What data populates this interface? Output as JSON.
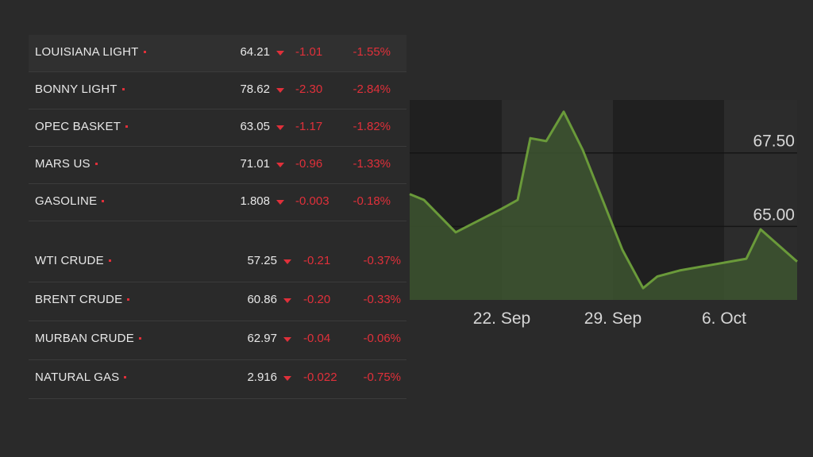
{
  "table": {
    "group1": [
      {
        "name": "LOUISIANA LIGHT",
        "price": "64.21",
        "change": "-1.01",
        "pct": "-1.55%"
      },
      {
        "name": "BONNY LIGHT",
        "price": "78.62",
        "change": "-2.30",
        "pct": "-2.84%"
      },
      {
        "name": "OPEC BASKET",
        "price": "63.05",
        "change": "-1.17",
        "pct": "-1.82%"
      },
      {
        "name": "MARS US",
        "price": "71.01",
        "change": "-0.96",
        "pct": "-1.33%"
      },
      {
        "name": "GASOLINE",
        "price": "1.808",
        "change": "-0.003",
        "pct": "-0.18%"
      }
    ],
    "group2": [
      {
        "name": "WTI CRUDE",
        "price": "57.25",
        "change": "-0.21",
        "pct": "-0.37%"
      },
      {
        "name": "BRENT CRUDE",
        "price": "60.86",
        "change": "-0.20",
        "pct": "-0.33%"
      },
      {
        "name": "MURBAN CRUDE",
        "price": "62.97",
        "change": "-0.04",
        "pct": "-0.06%"
      },
      {
        "name": "NATURAL GAS",
        "price": "2.916",
        "change": "-0.022",
        "pct": "-0.75%"
      }
    ]
  },
  "colors": {
    "background": "#2a2a2a",
    "negative": "#e0303a",
    "line": "#6a9a3a",
    "area": "#3d5530"
  },
  "chart_data": {
    "type": "area",
    "title": "",
    "xlabel": "",
    "ylabel": "",
    "x_tick_labels": [
      "22. Sep",
      "29. Sep",
      "6. Oct"
    ],
    "x_tick_days": [
      22,
      29,
      36
    ],
    "y_tick_labels": [
      "67.50",
      "65.00"
    ],
    "y_tick_values": [
      67.5,
      65.0
    ],
    "xlim": [
      16.2,
      40.6
    ],
    "ylim": [
      62.5,
      69.3
    ],
    "grid": "horizontal",
    "legend": "none",
    "series": [
      {
        "x": [
          16.2,
          17.1,
          19.1,
          22.0,
          23.0,
          23.8,
          24.8,
          25.9,
          27.1,
          29.6,
          30.9,
          31.8,
          33.2,
          37.4,
          38.3,
          40.6
        ],
        "y": [
          66.1,
          65.9,
          64.8,
          65.6,
          65.9,
          68.0,
          67.9,
          68.9,
          67.6,
          64.2,
          62.9,
          63.3,
          63.5,
          63.9,
          64.9,
          63.8
        ]
      }
    ]
  }
}
